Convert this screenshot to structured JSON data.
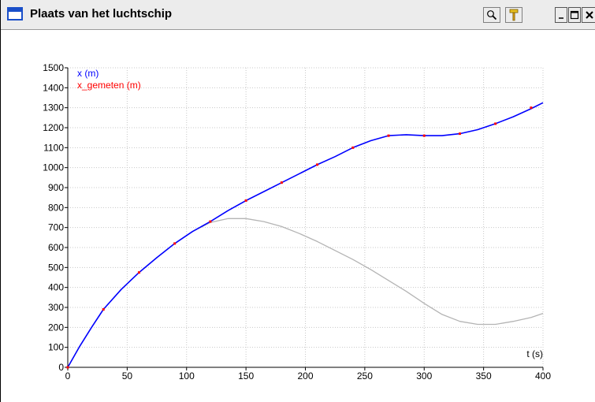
{
  "window": {
    "title": "Plaats van het luchtschip",
    "icons": [
      "window-icon",
      "magnifier-icon",
      "hammer-icon",
      "minimize-icon",
      "maximize-icon",
      "close-icon"
    ],
    "accent": "#1a4fc9"
  },
  "chart_data": {
    "type": "line",
    "xlabel": "t (s)",
    "ylabel": "",
    "xlim": [
      0,
      400
    ],
    "ylim": [
      0,
      1500
    ],
    "xticks": [
      0,
      50,
      100,
      150,
      200,
      250,
      300,
      350,
      400
    ],
    "yticks": [
      0,
      100,
      200,
      300,
      400,
      500,
      600,
      700,
      800,
      900,
      1000,
      1100,
      1200,
      1300,
      1400,
      1500
    ],
    "grid": true,
    "legend_position": "top-left",
    "series": [
      {
        "name": "x (m)",
        "color": "#0000ff",
        "style": "line",
        "x": [
          0,
          10,
          20,
          30,
          45,
          60,
          75,
          90,
          105,
          120,
          135,
          150,
          165,
          180,
          195,
          210,
          225,
          240,
          255,
          270,
          285,
          300,
          315,
          330,
          345,
          360,
          375,
          390,
          400
        ],
        "values": [
          0,
          105,
          200,
          290,
          390,
          475,
          550,
          620,
          680,
          730,
          785,
          835,
          880,
          925,
          970,
          1015,
          1055,
          1100,
          1135,
          1160,
          1165,
          1160,
          1160,
          1170,
          1190,
          1220,
          1255,
          1295,
          1325
        ]
      },
      {
        "name": "x_gemeten (m)",
        "color": "#ff0000",
        "style": "points",
        "x": [
          0,
          30,
          60,
          90,
          120,
          150,
          180,
          210,
          240,
          270,
          300,
          330,
          360,
          390
        ],
        "values": [
          0,
          290,
          475,
          620,
          730,
          835,
          925,
          1015,
          1100,
          1160,
          1160,
          1170,
          1220,
          1300
        ]
      },
      {
        "color": "#b4b4b4",
        "style": "line",
        "x": [
          0,
          10,
          20,
          30,
          45,
          60,
          75,
          90,
          105,
          120,
          135,
          150,
          165,
          180,
          195,
          210,
          225,
          240,
          255,
          270,
          285,
          300,
          315,
          330,
          345,
          360,
          375,
          390,
          400
        ],
        "values": [
          0,
          105,
          200,
          290,
          390,
          475,
          550,
          620,
          680,
          725,
          745,
          745,
          730,
          705,
          670,
          630,
          585,
          540,
          490,
          435,
          380,
          320,
          265,
          230,
          215,
          215,
          230,
          250,
          270
        ]
      }
    ]
  }
}
